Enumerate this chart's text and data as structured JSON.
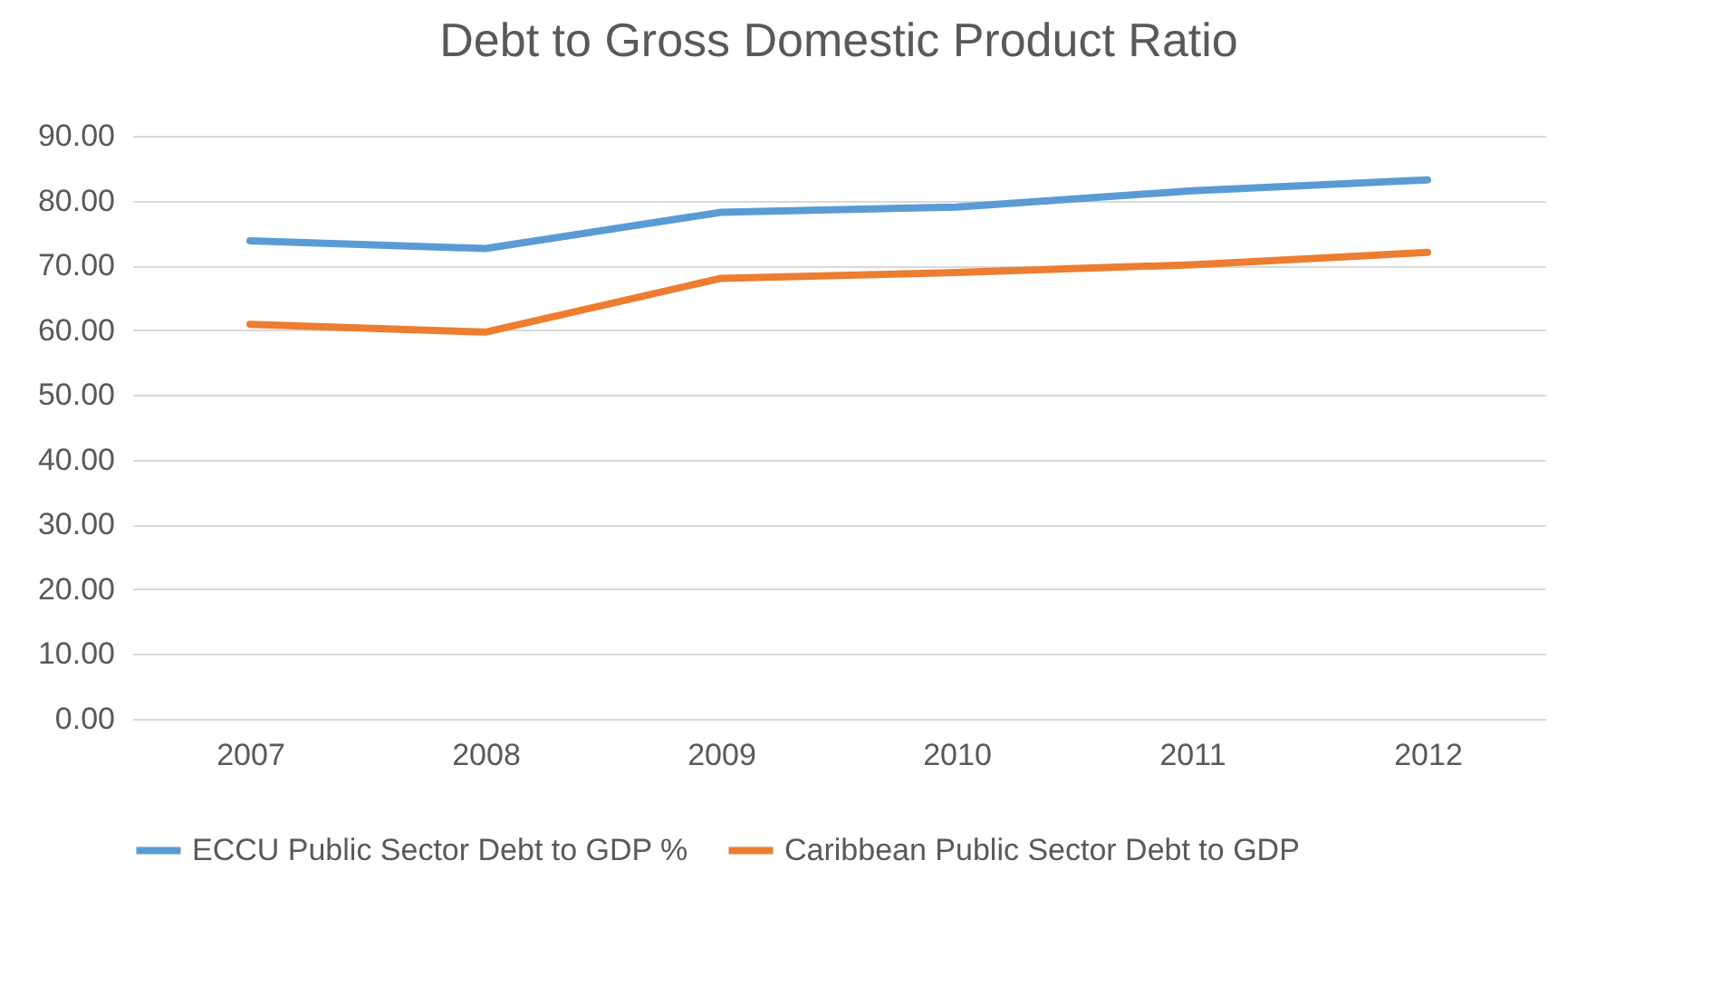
{
  "chart_data": {
    "type": "line",
    "title": "Debt to Gross Domestic Product Ratio",
    "categories": [
      "2007",
      "2008",
      "2009",
      "2010",
      "2011",
      "2012"
    ],
    "series": [
      {
        "name": "ECCU Public Sector Debt to GDP %",
        "color": "#5b9bd5",
        "values": [
          73.8,
          72.6,
          78.2,
          79.0,
          81.5,
          83.2
        ]
      },
      {
        "name": "Caribbean  Public Sector Debt to GDP",
        "color": "#ed7d31",
        "values": [
          60.9,
          59.7,
          68.0,
          68.9,
          70.1,
          72.0
        ]
      }
    ],
    "ylim": [
      0,
      90
    ],
    "yticks": [
      {
        "value": 0,
        "label": "0.00"
      },
      {
        "value": 10,
        "label": "10.00"
      },
      {
        "value": 20,
        "label": "20.00"
      },
      {
        "value": 30,
        "label": "30.00"
      },
      {
        "value": 40,
        "label": "40.00"
      },
      {
        "value": 50,
        "label": "50.00"
      },
      {
        "value": 60,
        "label": "60.00"
      },
      {
        "value": 70,
        "label": "70.00"
      },
      {
        "value": 80,
        "label": "80.00"
      },
      {
        "value": 90,
        "label": "90.00"
      }
    ],
    "grid": "y",
    "legend": "bottom",
    "marker": "none",
    "line_style": "solid"
  }
}
